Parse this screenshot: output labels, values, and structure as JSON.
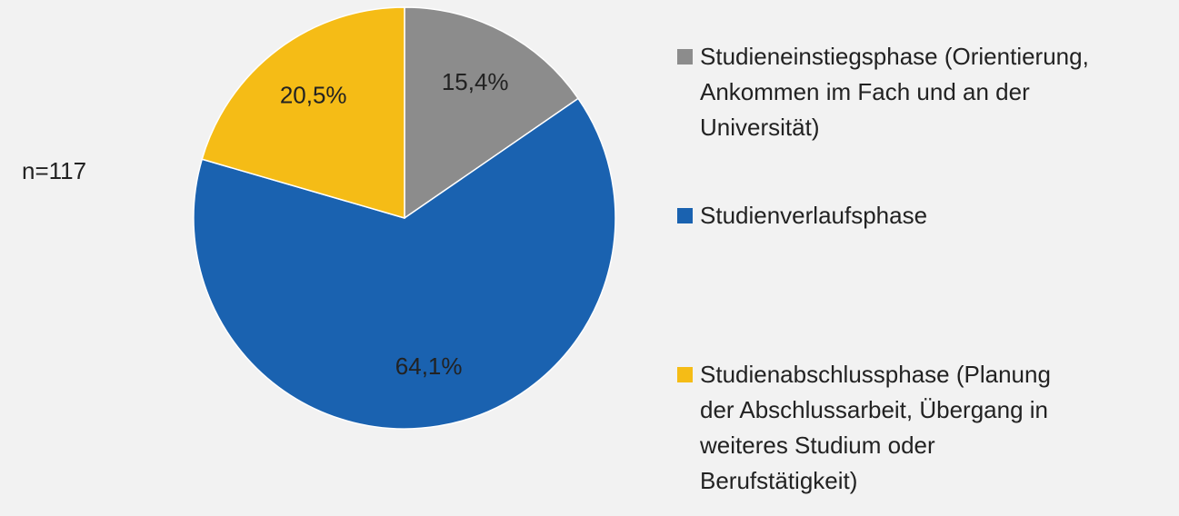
{
  "chart_data": {
    "type": "pie",
    "annotation": "n=117",
    "categories": [
      "Studieneinstiegsphase (Orientierung, Ankommen im Fach und an der Universität)",
      "Studienverlaufsphase",
      "Studienabschlussphase (Planung der Abschlussarbeit, Übergang in weiteres Studium oder Berufstätigkeit)"
    ],
    "values": [
      15.4,
      64.1,
      20.5
    ],
    "value_labels": [
      "15,4%",
      "64,1%",
      "20,5%"
    ],
    "colors": [
      "#8c8c8c",
      "#1a62b0",
      "#f5bc16"
    ],
    "legend": "right"
  }
}
